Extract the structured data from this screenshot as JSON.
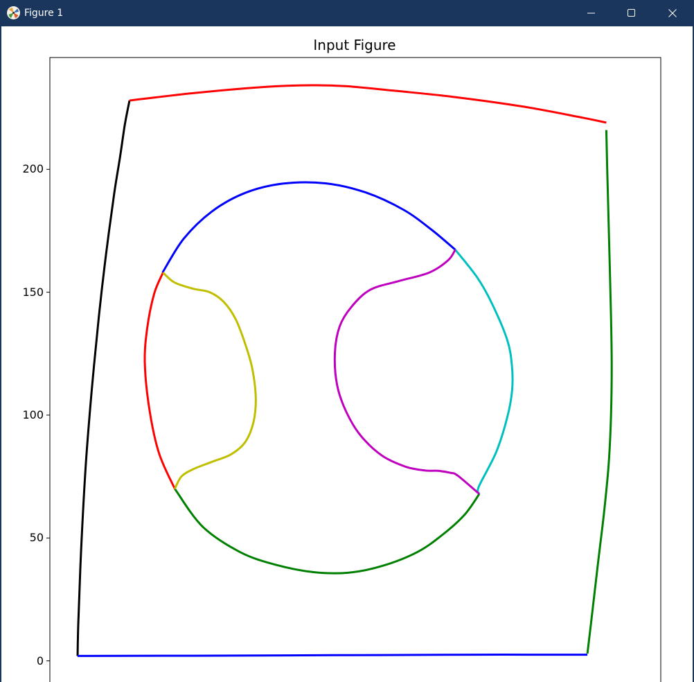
{
  "window": {
    "title": "Figure 1",
    "controls": {
      "minimize": "minimize-icon",
      "maximize": "maximize-icon",
      "close": "close-icon"
    }
  },
  "chart_data": {
    "type": "line",
    "title": "Input Figure",
    "xlabel": "",
    "ylabel": "",
    "ylim": [
      -5,
      246
    ],
    "xlim": [
      0,
      250
    ],
    "yticks": [
      0,
      50,
      100,
      150,
      200
    ],
    "ytick_labels": [
      "0",
      "50",
      "100",
      "150",
      "200"
    ],
    "grid": false,
    "series": [
      {
        "color": "#000000",
        "x": [
          11,
          11.3,
          12.5,
          14.5,
          17,
          20,
          23,
          26.5,
          29,
          31,
          33
        ],
        "y": [
          2,
          15,
          45,
          80,
          110,
          140,
          165,
          190,
          205,
          218,
          228
        ]
      },
      {
        "color": "#ff0000",
        "x": [
          33,
          60,
          90,
          110,
          125,
          145,
          170,
          200,
          225,
          235
        ],
        "y": [
          228,
          231,
          233.5,
          234.2,
          233.8,
          232,
          229.5,
          225.5,
          221,
          219
        ]
      },
      {
        "color": "#008000",
        "x": [
          235,
          235.4,
          236.2,
          237,
          237.3,
          237,
          236,
          234,
          231.5,
          228.5,
          227
        ],
        "y": [
          216,
          200,
          170,
          140,
          120,
          100,
          80,
          60,
          40,
          15,
          3
        ]
      },
      {
        "color": "#0000ff",
        "x": [
          11,
          60,
          120,
          180,
          227
        ],
        "y": [
          2,
          2.1,
          2.3,
          2.5,
          2.5
        ]
      },
      {
        "color": "#0000ff",
        "x": [
          47,
          56,
          68,
          82,
          98,
          116,
          133,
          149,
          161,
          171
        ],
        "y": [
          158,
          171.8,
          182.9,
          190.4,
          194.2,
          194.3,
          190.6,
          183.6,
          175.4,
          167.3
        ]
      },
      {
        "color": "#00bfbf",
        "x": [
          171,
          180.3,
          186.5,
          193,
          195,
          195.1,
          193,
          188.3,
          181,
          181.2
        ],
        "y": [
          167.3,
          156,
          145.5,
          130.7,
          120.1,
          110.1,
          98.9,
          84.8,
          70.9,
          67.9
        ]
      },
      {
        "color": "#008000",
        "x": [
          181.2,
          175,
          166,
          155,
          140,
          126,
          111,
          95,
          80,
          64,
          52.2
        ],
        "y": [
          67.9,
          59.5,
          51.6,
          44.3,
          38.6,
          35.9,
          36.1,
          39.1,
          44.2,
          54.6,
          70
        ]
      },
      {
        "color": "#ff0000",
        "x": [
          52.2,
          45.5,
          41.5,
          39.5,
          40.5,
          43.5,
          47.2
        ],
        "y": [
          70,
          84.5,
          102,
          121,
          135.3,
          149.5,
          158
        ]
      },
      {
        "color": "#bfbf00",
        "x": [
          47.2,
          52,
          60,
          67,
          73,
          78,
          82,
          85,
          86.5,
          85.5,
          82,
          76,
          68,
          60,
          55,
          52.2
        ],
        "y": [
          158,
          154,
          151.4,
          150,
          146,
          139,
          129,
          119,
          107,
          97,
          89,
          84,
          81,
          78,
          75,
          70
        ]
      },
      {
        "color": "#bf00bf",
        "x": [
          171,
          168,
          160,
          147,
          135,
          127,
          122,
          120,
          121,
          125,
          131,
          140,
          150,
          158,
          164,
          169,
          172,
          181.2
        ],
        "y": [
          167.3,
          163,
          158,
          154.5,
          151,
          144,
          136,
          125,
          112,
          101,
          91.6,
          83.5,
          79,
          77.5,
          77.3,
          76.5,
          75.4,
          67.9
        ]
      }
    ]
  }
}
